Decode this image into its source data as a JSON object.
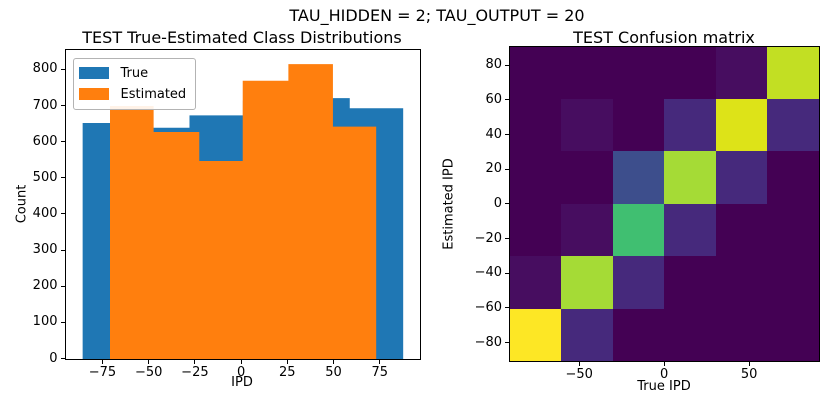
{
  "figure": {
    "suptitle": "TAU_HIDDEN = 2; TAU_OUTPUT = 20"
  },
  "colors": {
    "background": "#ffffff",
    "axis_line": "#000000",
    "text": "#000000",
    "legend_border": "#b3b3b3",
    "true_series": "#1f77b4",
    "estimated_series": "#ff7f0e",
    "colormap": "viridis",
    "colormap_min": "#440154",
    "colormap_max": "#fde725"
  },
  "chart_data": [
    {
      "type": "bar",
      "subtype": "overlapping-step-histogram",
      "title": "TEST True-Estimated Class Distributions",
      "xlabel": "IPD",
      "ylabel": "Count",
      "xlim": [
        -95,
        96.5
      ],
      "ylim": [
        0,
        855
      ],
      "grid": "off",
      "legend_position": "upper left",
      "xticks": {
        "values": [
          -75,
          -50,
          -25,
          0,
          25,
          50,
          75
        ],
        "labels": [
          "−75",
          "−50",
          "−25",
          "0",
          "25",
          "50",
          "75"
        ]
      },
      "yticks": {
        "values": [
          0,
          100,
          200,
          300,
          400,
          500,
          600,
          700,
          800
        ],
        "labels": [
          "0",
          "100",
          "200",
          "300",
          "400",
          "500",
          "600",
          "700",
          "800"
        ]
      },
      "series": [
        {
          "name": "True",
          "color": "#1f77b4",
          "bin_edges": [
            -86.0,
            -57.1,
            -28.2,
            0.7,
            29.6,
            58.5,
            87.4
          ],
          "counts": [
            653,
            640,
            674,
            715,
            722,
            694
          ]
        },
        {
          "name": "Estimated",
          "color": "#ff7f0e",
          "bin_edges": [
            -71.2,
            -47.6,
            -22.9,
            0.6,
            25.3,
            49.4,
            72.8
          ],
          "counts": [
            700,
            628,
            548,
            770,
            816,
            643
          ]
        }
      ]
    },
    {
      "type": "heatmap",
      "subtype": "confusion-matrix",
      "title": "TEST Confusion matrix",
      "xlabel": "True IPD",
      "ylabel": "Estimated IPD",
      "rows": 6,
      "cols": 6,
      "xlim": [
        -90.7,
        90.8
      ],
      "ylim": [
        -90.6,
        90.8
      ],
      "xticks": {
        "values": [
          -50,
          0,
          50
        ],
        "labels": [
          "−50",
          "0",
          "50"
        ]
      },
      "yticks": {
        "values": [
          80,
          60,
          40,
          20,
          0,
          -20,
          -40,
          -60,
          -80
        ],
        "labels": [
          "80",
          "60",
          "40",
          "20",
          "0",
          "−20",
          "−40",
          "−60",
          "−80"
        ]
      },
      "cell_colors": [
        [
          "#440154",
          "#440154",
          "#440154",
          "#440154",
          "#470d60",
          "#c2df23"
        ],
        [
          "#440154",
          "#470d60",
          "#440154",
          "#46297c",
          "#dde318",
          "#46297c"
        ],
        [
          "#440154",
          "#440154",
          "#3d4e8c",
          "#a5db36",
          "#46297c",
          "#440154"
        ],
        [
          "#440154",
          "#470d60",
          "#40bf71",
          "#46297c",
          "#440154",
          "#440154"
        ],
        [
          "#470d60",
          "#a5db36",
          "#46297c",
          "#440154",
          "#440154",
          "#440154"
        ],
        [
          "#fde725",
          "#46297c",
          "#440154",
          "#440154",
          "#440154",
          "#440154"
        ]
      ],
      "cell_values_norm": [
        [
          0,
          0,
          0,
          0,
          0.05,
          0.87
        ],
        [
          0,
          0.05,
          0,
          0.14,
          0.93,
          0.14
        ],
        [
          0,
          0,
          0.33,
          0.8,
          0.14,
          0
        ],
        [
          0,
          0.05,
          0.63,
          0.14,
          0,
          0
        ],
        [
          0.05,
          0.8,
          0.14,
          0,
          0,
          0
        ],
        [
          1.0,
          0.14,
          0,
          0,
          0,
          0
        ]
      ]
    }
  ]
}
